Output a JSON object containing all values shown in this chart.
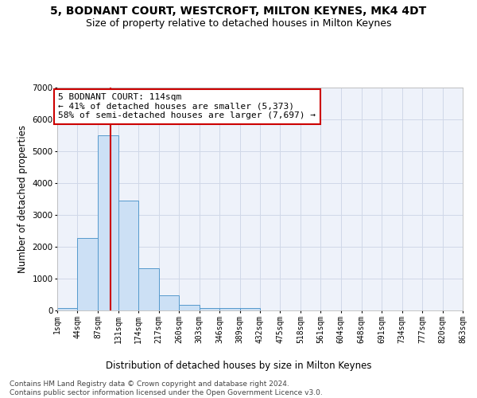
{
  "title": "5, BODNANT COURT, WESTCROFT, MILTON KEYNES, MK4 4DT",
  "subtitle": "Size of property relative to detached houses in Milton Keynes",
  "xlabel": "Distribution of detached houses by size in Milton Keynes",
  "ylabel": "Number of detached properties",
  "footnote1": "Contains HM Land Registry data © Crown copyright and database right 2024.",
  "footnote2": "Contains public sector information licensed under the Open Government Licence v3.0.",
  "annotation_line1": "5 BODNANT COURT: 114sqm",
  "annotation_line2": "← 41% of detached houses are smaller (5,373)",
  "annotation_line3": "58% of semi-detached houses are larger (7,697) →",
  "bin_edges": [
    1,
    44,
    87,
    131,
    174,
    217,
    260,
    303,
    346,
    389,
    432,
    475,
    518,
    561,
    604,
    648,
    691,
    734,
    777,
    820,
    863
  ],
  "bin_counts": [
    75,
    2280,
    5500,
    3450,
    1320,
    470,
    165,
    80,
    75,
    75,
    0,
    0,
    0,
    0,
    0,
    0,
    0,
    0,
    0,
    0
  ],
  "x_tick_labels": [
    "1sqm",
    "44sqm",
    "87sqm",
    "131sqm",
    "174sqm",
    "217sqm",
    "260sqm",
    "303sqm",
    "346sqm",
    "389sqm",
    "432sqm",
    "475sqm",
    "518sqm",
    "561sqm",
    "604sqm",
    "648sqm",
    "691sqm",
    "734sqm",
    "777sqm",
    "820sqm",
    "863sqm"
  ],
  "ylim": [
    0,
    7000
  ],
  "property_size": 114,
  "bar_color": "#cce0f5",
  "bar_edge_color": "#5599cc",
  "line_color": "#cc0000",
  "grid_color": "#d0d8e8",
  "bg_color": "#eef2fa",
  "annotation_box_color": "#cc0000",
  "title_fontsize": 10,
  "subtitle_fontsize": 9,
  "axis_label_fontsize": 8.5,
  "tick_fontsize": 7,
  "annotation_fontsize": 8,
  "footnote_fontsize": 6.5
}
